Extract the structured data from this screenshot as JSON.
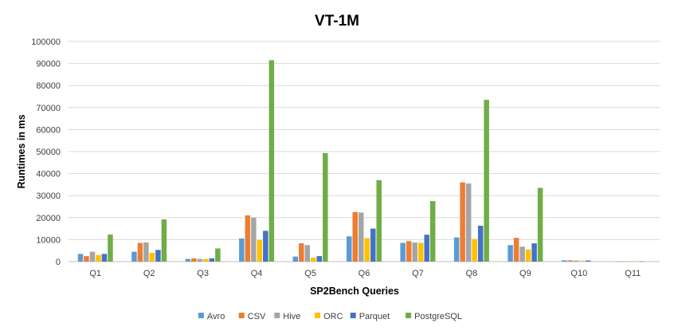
{
  "chart_data": {
    "type": "bar",
    "title": "VT-1M",
    "xlabel": "SP2Bench Queries",
    "ylabel": "Runtimes in ms",
    "ylim": [
      0,
      100000
    ],
    "yticks": [
      0,
      10000,
      20000,
      30000,
      40000,
      50000,
      60000,
      70000,
      80000,
      90000,
      100000
    ],
    "grid": true,
    "legend_position": "bottom",
    "categories": [
      "Q1",
      "Q2",
      "Q3",
      "Q4",
      "Q5",
      "Q6",
      "Q7",
      "Q8",
      "Q9",
      "Q10",
      "Q11"
    ],
    "series": [
      {
        "name": "Avro",
        "color": "#5B9BD5",
        "values": [
          3500,
          4500,
          1200,
          10500,
          2300,
          11500,
          8500,
          11000,
          7500,
          600,
          100
        ]
      },
      {
        "name": "CSV",
        "color": "#ED7D31",
        "values": [
          2500,
          8500,
          1500,
          21000,
          8300,
          22500,
          9300,
          36000,
          10800,
          600,
          100
        ]
      },
      {
        "name": "Hive",
        "color": "#A5A5A5",
        "values": [
          4500,
          8700,
          1200,
          20000,
          7500,
          22300,
          8700,
          35500,
          6800,
          500,
          100
        ]
      },
      {
        "name": "ORC",
        "color": "#FFC000",
        "values": [
          3000,
          4000,
          1200,
          9800,
          1800,
          10700,
          8500,
          10300,
          5500,
          400,
          100
        ]
      },
      {
        "name": "Parquet",
        "color": "#4472C4",
        "values": [
          3500,
          5300,
          1500,
          14000,
          2500,
          15000,
          12200,
          16300,
          8300,
          500,
          100
        ]
      },
      {
        "name": "PostgreSQL",
        "color": "#70AD47",
        "values": [
          12300,
          19200,
          6000,
          91500,
          49300,
          37000,
          27500,
          73500,
          33500,
          0,
          0
        ]
      }
    ]
  }
}
